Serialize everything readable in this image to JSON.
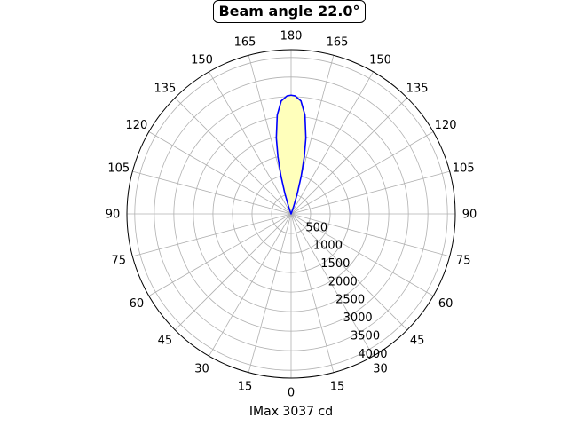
{
  "chart_data": {
    "type": "polar",
    "title": "Beam angle 22.0°",
    "xlabel": "IMax 3037 cd",
    "angle_ticks_left": [
      "0",
      "15",
      "30",
      "45",
      "60",
      "75",
      "90",
      "105",
      "120",
      "135",
      "150",
      "165",
      "180"
    ],
    "angle_ticks_right": [
      "15",
      "30",
      "45",
      "60",
      "75",
      "90",
      "105",
      "120",
      "135",
      "150",
      "165"
    ],
    "radial_ticks": [
      500,
      1000,
      1500,
      2000,
      2500,
      3000,
      3500,
      4000
    ],
    "rlim": [
      0,
      4200
    ],
    "grid": true,
    "series": [
      {
        "color": "#0000ff",
        "fill": "#ffffbb",
        "points": [
          {
            "angle": 180,
            "value": 3037
          },
          {
            "angle": 178,
            "value": 3020
          },
          {
            "angle": 175,
            "value": 2900
          },
          {
            "angle": 172,
            "value": 2550
          },
          {
            "angle": 169,
            "value": 1980
          },
          {
            "angle": 167,
            "value": 1500
          },
          {
            "angle": 165,
            "value": 1000
          },
          {
            "angle": 163,
            "value": 550
          },
          {
            "angle": 161,
            "value": 200
          },
          {
            "angle": 159,
            "value": 0
          }
        ]
      }
    ]
  }
}
